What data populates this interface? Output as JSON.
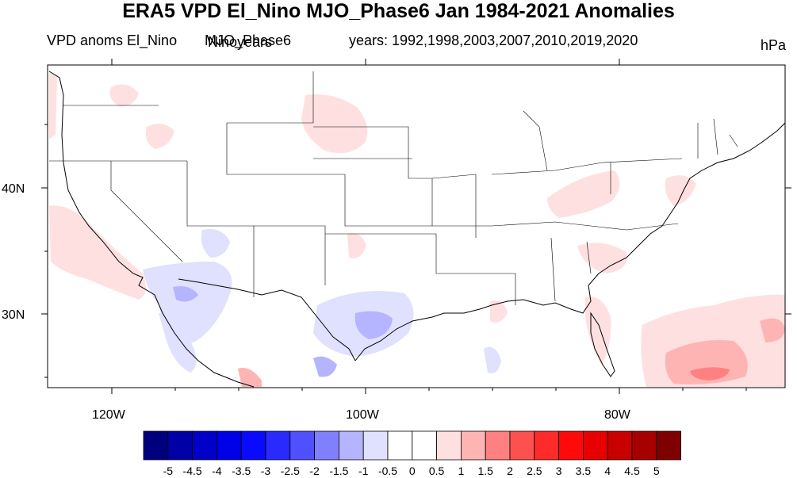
{
  "title": "ERA5 VPD El_Nino MJO_Phase6 Jan 1984-2021 Anomalies",
  "subtitle_left": "VPD anoms El_Nino",
  "subtitle_center_a": "MJO_Phase6",
  "subtitle_center_b": "Ninoyears",
  "subtitle_years": "years: 1992,1998,2003,2007,2010,2019,2020",
  "units": "hPa",
  "map": {
    "lat_labels": [
      "40N",
      "30N"
    ],
    "lon_labels": [
      "120W",
      "100W",
      "80W"
    ]
  },
  "colorbar": {
    "labels": [
      "-5",
      "-4.5",
      "-4",
      "-3.5",
      "-3",
      "-2.5",
      "-2",
      "-1.5",
      "-1",
      "-0.5",
      "0",
      "0.5",
      "1",
      "1.5",
      "2",
      "2.5",
      "3",
      "3.5",
      "4",
      "4.5",
      "5"
    ],
    "colors": [
      "#00007f",
      "#0000a6",
      "#0000c8",
      "#0000e8",
      "#0a0aff",
      "#2a2aff",
      "#5050ff",
      "#8080ff",
      "#b4b4ff",
      "#e0e0ff",
      "#ffffff",
      "#ffffff",
      "#ffe0e0",
      "#ffb4b4",
      "#ff8080",
      "#ff5050",
      "#ff2a2a",
      "#ff0a0a",
      "#e80000",
      "#c80000",
      "#a60000",
      "#7f0000"
    ]
  }
}
